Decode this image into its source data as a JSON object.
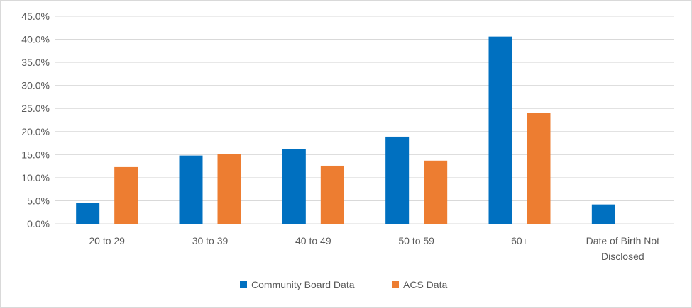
{
  "chart_data": {
    "type": "bar",
    "categories": [
      "20 to 29",
      "30 to 39",
      "40 to 49",
      "50 to 59",
      "60+",
      "Date of Birth Not Disclosed"
    ],
    "category_lines": [
      [
        "20 to 29"
      ],
      [
        "30 to 39"
      ],
      [
        "40 to 49"
      ],
      [
        "50 to 59"
      ],
      [
        "60+"
      ],
      [
        "Date of Birth Not",
        "Disclosed"
      ]
    ],
    "series": [
      {
        "name": "Community Board Data",
        "color": "#0070C0",
        "values": [
          4.6,
          14.8,
          16.2,
          18.9,
          40.6,
          4.2
        ]
      },
      {
        "name": "ACS Data",
        "color": "#ED7D31",
        "values": [
          12.3,
          15.1,
          12.6,
          13.7,
          24.0,
          null
        ]
      }
    ],
    "y_ticks": [
      "0.0%",
      "5.0%",
      "10.0%",
      "15.0%",
      "20.0%",
      "25.0%",
      "30.0%",
      "35.0%",
      "40.0%",
      "45.0%"
    ],
    "ylim": [
      0,
      45
    ],
    "grid": true,
    "legend_position": "bottom",
    "gridline_color": "#d9d9d9"
  }
}
